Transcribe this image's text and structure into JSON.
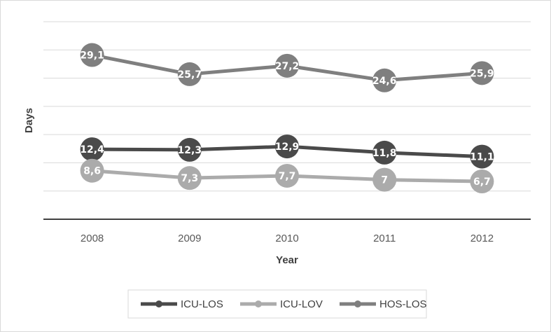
{
  "chart_data": {
    "type": "line",
    "categories": [
      "2008",
      "2009",
      "2010",
      "2011",
      "2012"
    ],
    "xlabel": "Year",
    "ylabel": "Days",
    "ylim": [
      0,
      35
    ],
    "y_step": 5,
    "grid": true,
    "legend_position": "bottom",
    "series": [
      {
        "name": "ICU-LOS",
        "values": [
          12.4,
          12.3,
          12.9,
          11.8,
          11.1
        ],
        "labels": [
          "12,4",
          "12,3",
          "12,9",
          "11,8",
          "11,1"
        ],
        "color": "#4a4a4a"
      },
      {
        "name": "ICU-LOV",
        "values": [
          8.6,
          7.3,
          7.7,
          7,
          6.7
        ],
        "labels": [
          "8,6",
          "7,3",
          "7,7",
          "7",
          "6,7"
        ],
        "color": "#ababab"
      },
      {
        "name": "HOS-LOS",
        "values": [
          29.1,
          25.7,
          27.2,
          24.6,
          25.9
        ],
        "labels": [
          "29,1",
          "25,7",
          "27,2",
          "24,6",
          "25,9"
        ],
        "color": "#7f7f7f"
      }
    ]
  }
}
